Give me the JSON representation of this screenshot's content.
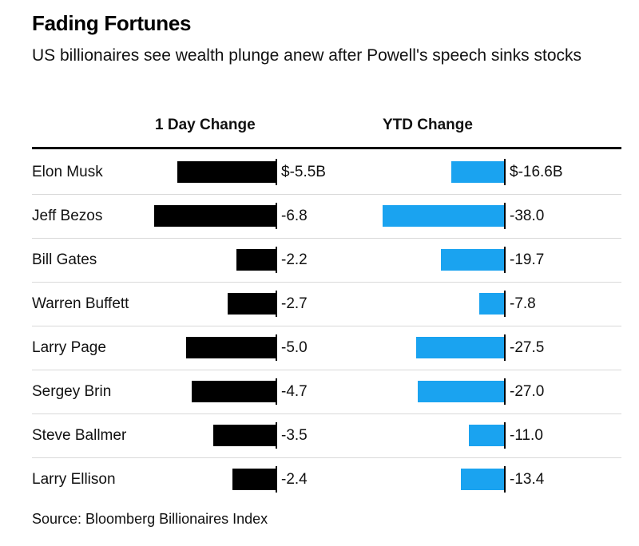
{
  "header": {
    "title": "Fading Fortunes",
    "subtitle": "US billionaires see wealth plunge anew after Powell's speech sinks stocks"
  },
  "footer": {
    "source": "Source: Bloomberg Billionaires Index"
  },
  "colors": {
    "day_bar": "#000000",
    "ytd_bar": "#1aa3f0"
  },
  "chart_data": {
    "type": "bar",
    "orientation": "horizontal",
    "title": "Fading Fortunes",
    "subtitle": "US billionaires see wealth plunge anew after Powell's speech sinks stocks",
    "categories": [
      "Elon Musk",
      "Jeff Bezos",
      "Bill Gates",
      "Warren Buffett",
      "Larry Page",
      "Sergey Brin",
      "Steve Ballmer",
      "Larry Ellison"
    ],
    "series": [
      {
        "name": "1 Day Change",
        "unit": "$B",
        "values": [
          -5.5,
          -6.8,
          -2.2,
          -2.7,
          -5.0,
          -4.7,
          -3.5,
          -2.4
        ],
        "labels": [
          "$-5.5B",
          "-6.8",
          "-2.2",
          "-2.7",
          "-5.0",
          "-4.7",
          "-3.5",
          "-2.4"
        ],
        "color": "#000000"
      },
      {
        "name": "YTD Change",
        "unit": "$B",
        "values": [
          -16.6,
          -38.0,
          -19.7,
          -7.8,
          -27.5,
          -27.0,
          -11.0,
          -13.4
        ],
        "labels": [
          "$-16.6B",
          "-38.0",
          "-19.7",
          "-7.8",
          "-27.5",
          "-27.0",
          "-11.0",
          "-13.4"
        ],
        "color": "#1aa3f0"
      }
    ],
    "source": "Source: Bloomberg Billionaires Index"
  }
}
